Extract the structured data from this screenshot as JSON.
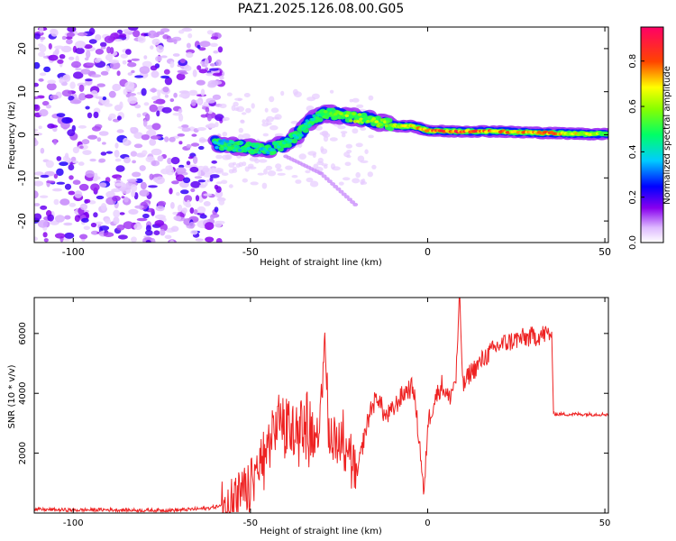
{
  "title": "PAZ1.2025.126.08.00.G05",
  "chart_data": [
    {
      "type": "heatmap",
      "xlabel": "Height of straight line (km)",
      "ylabel": "Frequency (Hz)",
      "xlim": [
        -111,
        51
      ],
      "ylim": [
        -25,
        25
      ],
      "x_ticks": [
        -100,
        -50,
        0,
        50
      ],
      "y_ticks": [
        -20,
        -10,
        0,
        10,
        20
      ],
      "colorbar": {
        "label": "Normalized spectral amplitude",
        "range": [
          0,
          0.95
        ],
        "ticks": [
          0.0,
          0.2,
          0.4,
          0.6,
          0.8
        ],
        "tick_labels": [
          "0.0",
          "0.2",
          "0.4",
          "0.6",
          "0.8"
        ],
        "colormap": [
          "#ffffff",
          "#7700ee",
          "#0000ff",
          "#00ffff",
          "#00ff00",
          "#ffff00",
          "#ff0000",
          "#ff0066"
        ]
      },
      "ridge": [
        {
          "x": -60,
          "y": -2.0,
          "a": 0.35
        },
        {
          "x": -55,
          "y": -2.5,
          "a": 0.4
        },
        {
          "x": -50,
          "y": -3.0,
          "a": 0.45
        },
        {
          "x": -45,
          "y": -3.5,
          "a": 0.4
        },
        {
          "x": -40,
          "y": -2.0,
          "a": 0.5
        },
        {
          "x": -36,
          "y": 0.5,
          "a": 0.45
        },
        {
          "x": -32,
          "y": 4.0,
          "a": 0.45
        },
        {
          "x": -28,
          "y": 5.0,
          "a": 0.55
        },
        {
          "x": -24,
          "y": 4.5,
          "a": 0.6
        },
        {
          "x": -20,
          "y": 4.0,
          "a": 0.6
        },
        {
          "x": -16,
          "y": 3.5,
          "a": 0.6
        },
        {
          "x": -12,
          "y": 2.5,
          "a": 0.65
        },
        {
          "x": -8,
          "y": 2.0,
          "a": 0.65
        },
        {
          "x": -4,
          "y": 2.0,
          "a": 0.7
        },
        {
          "x": 0,
          "y": 1.0,
          "a": 0.75
        },
        {
          "x": 5,
          "y": 0.8,
          "a": 0.85
        },
        {
          "x": 10,
          "y": 0.8,
          "a": 0.85
        },
        {
          "x": 15,
          "y": 0.8,
          "a": 0.8
        },
        {
          "x": 20,
          "y": 0.8,
          "a": 0.8
        },
        {
          "x": 25,
          "y": 0.6,
          "a": 0.75
        },
        {
          "x": 30,
          "y": 0.5,
          "a": 0.75
        },
        {
          "x": 35,
          "y": 0.4,
          "a": 0.8
        },
        {
          "x": 40,
          "y": 0.3,
          "a": 0.7
        },
        {
          "x": 45,
          "y": 0.2,
          "a": 0.65
        },
        {
          "x": 51,
          "y": 0.2,
          "a": 0.6
        }
      ],
      "noise_region_x": [
        -111,
        -60
      ],
      "branch": [
        {
          "x": -40,
          "y": -5.0
        },
        {
          "x": -30,
          "y": -9.0
        },
        {
          "x": -20,
          "y": -16.5
        }
      ]
    },
    {
      "type": "line",
      "xlabel": "Height of straight line (km)",
      "ylabel": "SNR (10 * v/v)",
      "xlim": [
        -111,
        51
      ],
      "ylim": [
        0,
        7200
      ],
      "x_ticks": [
        -100,
        -50,
        0,
        50
      ],
      "y_ticks": [
        2000,
        4000,
        6000
      ],
      "color": "#ff2222",
      "series": [
        {
          "x": [
            -111,
            -100,
            -90,
            -80,
            -70,
            -62,
            -58,
            -55,
            -52,
            -50,
            -48,
            -46,
            -44,
            -42,
            -40,
            -38,
            -36,
            -34,
            -32,
            -30,
            -29,
            -28,
            -26,
            -24,
            -22,
            -20,
            -18,
            -16,
            -14,
            -12,
            -10,
            -8,
            -6,
            -4,
            -2,
            -1,
            0,
            2,
            4,
            6,
            8,
            9,
            10,
            12,
            14,
            16,
            18,
            20,
            25,
            30,
            34,
            35,
            35.5,
            36,
            40,
            45,
            51
          ],
          "y": [
            120,
            100,
            110,
            90,
            100,
            160,
            250,
            400,
            700,
            900,
            1500,
            2000,
            2500,
            3200,
            3000,
            2800,
            3000,
            3200,
            2600,
            3500,
            6500,
            2800,
            2500,
            2700,
            2200,
            1200,
            2500,
            3500,
            3900,
            3200,
            3400,
            3800,
            4100,
            4200,
            2000,
            500,
            3000,
            3800,
            4300,
            3800,
            4500,
            7200,
            4200,
            4700,
            4900,
            5200,
            5400,
            5600,
            5800,
            5900,
            6000,
            6000,
            3400,
            3300,
            3300,
            3300,
            3300
          ]
        }
      ]
    }
  ]
}
